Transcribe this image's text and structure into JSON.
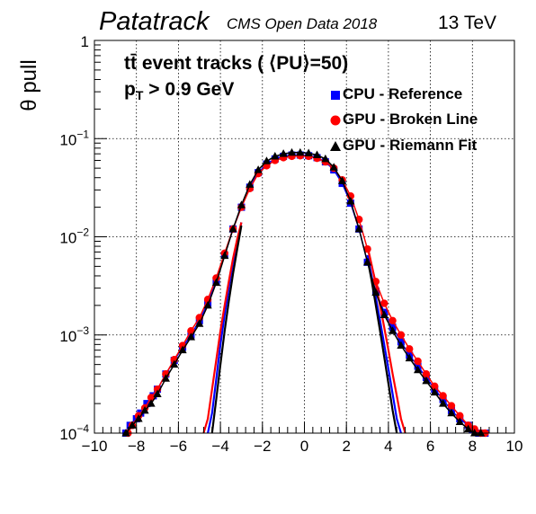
{
  "header": {
    "brand": "Patatrack",
    "subtitle": "CMS Open Data 2018",
    "energy": "13 TeV"
  },
  "annotation": {
    "line1": "tt̄ event tracks ( ⟨PU⟩=50)",
    "line2_prefix": "p",
    "line2_sub": "T",
    "line2_suffix": " > 0.9 GeV"
  },
  "chart_data": {
    "type": "line",
    "title": "",
    "xlabel": "",
    "ylabel": "θ pull",
    "xlim": [
      -10,
      10
    ],
    "ylim": [
      0.0001,
      1
    ],
    "yscale": "log",
    "grid": true,
    "legend_position": "top-right",
    "x_ticks": [
      "−10",
      "−8",
      "−6",
      "−4",
      "−2",
      "0",
      "2",
      "4",
      "6",
      "8",
      "10"
    ],
    "y_ticks": [
      {
        "base": "10",
        "exp": "−4"
      },
      {
        "base": "10",
        "exp": "−3"
      },
      {
        "base": "10",
        "exp": "−2"
      },
      {
        "base": "10",
        "exp": "−1"
      },
      {
        "base": "1",
        "exp": ""
      }
    ],
    "series": [
      {
        "name": "CPU - Reference",
        "color": "#0000ff",
        "marker": "square",
        "tails_x": [
          -8.5,
          -8.3,
          -8.0,
          -7.8,
          -7.5,
          -7.2,
          -7.0,
          -6.6,
          -6.2,
          -5.8,
          -5.4,
          -5.0,
          -4.6,
          -4.2,
          -3.8,
          -3.4,
          -3.0,
          -2.6,
          -2.2,
          -1.8,
          -1.4,
          -1.0,
          -0.6,
          -0.2,
          0.2,
          0.6,
          1.0,
          1.4,
          1.8,
          2.2,
          2.6,
          3.0,
          3.4,
          3.8,
          4.2,
          4.6,
          5.0,
          5.4,
          5.8,
          6.2,
          6.6,
          7.0,
          7.4,
          7.8,
          8.0,
          8.3,
          8.6
        ],
        "tails_y": [
          0.0001,
          0.00012,
          0.00014,
          0.00016,
          0.0002,
          0.00024,
          0.00028,
          0.0004,
          0.00055,
          0.00075,
          0.001,
          0.0014,
          0.0021,
          0.0035,
          0.0065,
          0.012,
          0.02,
          0.032,
          0.045,
          0.055,
          0.062,
          0.066,
          0.068,
          0.068,
          0.067,
          0.064,
          0.058,
          0.048,
          0.035,
          0.022,
          0.012,
          0.0055,
          0.0028,
          0.0017,
          0.0012,
          0.00085,
          0.00062,
          0.00048,
          0.00037,
          0.00028,
          0.00022,
          0.00017,
          0.00014,
          0.00012,
          0.00011,
          0.0001,
          0.0001
        ],
        "core_x": [
          -4.6,
          -4.4,
          -4.2,
          -4.0,
          -3.8,
          -3.6,
          -3.4,
          -3.2,
          -3.0,
          3.0,
          3.2,
          3.4,
          3.6,
          3.8,
          4.0,
          4.2,
          4.4,
          4.6
        ],
        "core_y": [
          0.0001,
          0.00016,
          0.00035,
          0.0008,
          0.0016,
          0.003,
          0.0055,
          0.009,
          0.014,
          0.0065,
          0.004,
          0.0024,
          0.0014,
          0.0008,
          0.00045,
          0.00025,
          0.00014,
          0.0001
        ]
      },
      {
        "name": "GPU - Broken Line",
        "color": "#ff0000",
        "marker": "circle",
        "tails_x": [
          -8.4,
          -8.2,
          -7.9,
          -7.6,
          -7.3,
          -7.0,
          -6.6,
          -6.2,
          -5.8,
          -5.4,
          -5.0,
          -4.6,
          -4.2,
          -3.8,
          -3.4,
          -3.0,
          -2.6,
          -2.2,
          -1.8,
          -1.4,
          -1.0,
          -0.6,
          -0.2,
          0.2,
          0.6,
          1.0,
          1.4,
          1.8,
          2.2,
          2.6,
          3.0,
          3.4,
          3.8,
          4.2,
          4.6,
          5.0,
          5.4,
          5.8,
          6.2,
          6.6,
          7.0,
          7.4,
          7.8,
          8.1,
          8.4,
          8.6
        ],
        "tails_y": [
          0.0001,
          0.00012,
          0.00015,
          0.00018,
          0.00023,
          0.00028,
          0.0004,
          0.00056,
          0.00078,
          0.0011,
          0.0015,
          0.0023,
          0.0038,
          0.0068,
          0.012,
          0.02,
          0.031,
          0.044,
          0.053,
          0.06,
          0.064,
          0.066,
          0.067,
          0.066,
          0.063,
          0.058,
          0.05,
          0.038,
          0.026,
          0.015,
          0.0075,
          0.0035,
          0.0021,
          0.0014,
          0.001,
          0.00072,
          0.00054,
          0.0004,
          0.0003,
          0.00024,
          0.00019,
          0.00015,
          0.00012,
          0.00011,
          0.0001,
          0.0001
        ],
        "core_x": [
          -4.8,
          -4.6,
          -4.4,
          -4.2,
          -4.0,
          -3.8,
          -3.6,
          -3.4,
          -3.2,
          -3.0,
          3.0,
          3.2,
          3.4,
          3.6,
          3.8,
          4.0,
          4.2,
          4.4,
          4.6,
          4.8
        ],
        "core_y": [
          0.0001,
          0.00014,
          0.00028,
          0.00055,
          0.0011,
          0.002,
          0.0035,
          0.006,
          0.0095,
          0.014,
          0.008,
          0.0052,
          0.0033,
          0.002,
          0.0012,
          0.0007,
          0.0004,
          0.00024,
          0.00014,
          0.0001
        ]
      },
      {
        "name": "GPU - Riemann Fit",
        "color": "#000000",
        "marker": "triangle",
        "tails_x": [
          -8.5,
          -8.2,
          -7.9,
          -7.6,
          -7.3,
          -7.0,
          -6.6,
          -6.2,
          -5.8,
          -5.4,
          -5.0,
          -4.6,
          -4.2,
          -3.8,
          -3.4,
          -3.0,
          -2.6,
          -2.2,
          -1.8,
          -1.4,
          -1.0,
          -0.6,
          -0.2,
          0.2,
          0.6,
          1.0,
          1.4,
          1.8,
          2.2,
          2.6,
          3.0,
          3.4,
          3.8,
          4.2,
          4.6,
          5.0,
          5.4,
          5.8,
          6.2,
          6.6,
          7.0,
          7.4,
          7.8,
          8.1,
          8.4
        ],
        "tails_y": [
          0.0001,
          0.00012,
          0.00014,
          0.00017,
          0.0002,
          0.00025,
          0.00036,
          0.0005,
          0.0007,
          0.00095,
          0.0013,
          0.002,
          0.0034,
          0.0064,
          0.012,
          0.021,
          0.034,
          0.048,
          0.059,
          0.066,
          0.07,
          0.072,
          0.072,
          0.071,
          0.068,
          0.062,
          0.051,
          0.037,
          0.023,
          0.012,
          0.0055,
          0.0027,
          0.0016,
          0.0011,
          0.00078,
          0.00058,
          0.00044,
          0.00034,
          0.00026,
          0.0002,
          0.00016,
          0.00013,
          0.00011,
          0.0001,
          0.0001
        ],
        "core_x": [
          -4.4,
          -4.2,
          -4.0,
          -3.8,
          -3.6,
          -3.4,
          -3.2,
          -3.0,
          3.0,
          3.2,
          3.4,
          3.6,
          3.8,
          4.0,
          4.2,
          4.4
        ],
        "core_y": [
          0.0001,
          0.00022,
          0.0005,
          0.0011,
          0.0022,
          0.0042,
          0.0075,
          0.013,
          0.006,
          0.0036,
          0.002,
          0.0011,
          0.0006,
          0.00032,
          0.00017,
          0.0001
        ]
      }
    ]
  }
}
